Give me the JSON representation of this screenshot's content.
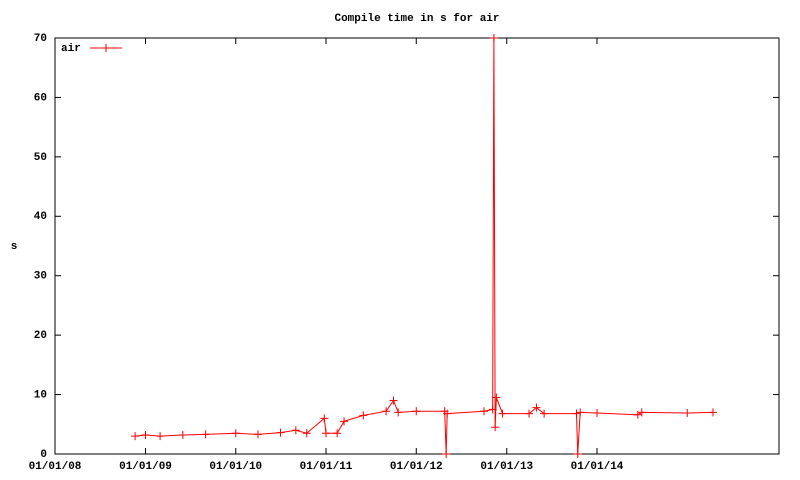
{
  "chart_data": {
    "type": "line",
    "title": "Compile time in s for air",
    "y_label": "s",
    "legend": "top-left",
    "x": [
      "2008-11-20",
      "2009-01-01",
      "2009-03-01",
      "2009-06-01",
      "2009-09-01",
      "2010-01-01",
      "2010-04-01",
      "2010-07-01",
      "2010-09-01",
      "2010-10-15",
      "2010-12-25",
      "2011-01-01",
      "2011-02-15",
      "2011-03-15",
      "2011-06-01",
      "2011-09-01",
      "2011-10-01",
      "2011-10-20",
      "2012-01-01",
      "2012-04-25",
      "2012-05-01",
      "2012-05-05",
      "2012-10-01",
      "2012-11-05",
      "2012-11-10",
      "2012-11-15",
      "2012-11-20",
      "2012-12-15",
      "2013-04-01",
      "2013-05-01",
      "2013-06-01",
      "2013-10-10",
      "2013-10-15",
      "2013-10-25",
      "2014-01-01",
      "2014-06-15",
      "2014-07-01",
      "2015-01-01",
      "2015-04-15"
    ],
    "series": [
      {
        "name": "air",
        "color": "#ff0000",
        "values": [
          3.0,
          3.2,
          3.0,
          3.2,
          3.3,
          3.5,
          3.3,
          3.6,
          4.0,
          3.5,
          6.0,
          3.5,
          3.5,
          5.5,
          6.5,
          7.2,
          9.0,
          7.0,
          7.2,
          7.2,
          0,
          6.8,
          7.2,
          7.5,
          70,
          4.5,
          9.5,
          6.8,
          6.8,
          7.8,
          6.8,
          6.8,
          0,
          7.0,
          6.9,
          6.6,
          7.0,
          6.9,
          7.0
        ]
      }
    ],
    "xlim": [
      "2008-01-01",
      "2016-01-07"
    ],
    "xticks": [
      {
        "value": "2008-01-01",
        "label": "01/01/08"
      },
      {
        "value": "2009-01-01",
        "label": "01/01/09"
      },
      {
        "value": "2010-01-01",
        "label": "01/01/10"
      },
      {
        "value": "2011-01-01",
        "label": "01/01/11"
      },
      {
        "value": "2012-01-01",
        "label": "01/01/12"
      },
      {
        "value": "2013-01-01",
        "label": "01/01/13"
      },
      {
        "value": "2014-01-01",
        "label": "01/01/14"
      }
    ],
    "ylim": [
      0,
      70
    ],
    "yticks": [
      0,
      10,
      20,
      30,
      40,
      50,
      60,
      70
    ]
  }
}
